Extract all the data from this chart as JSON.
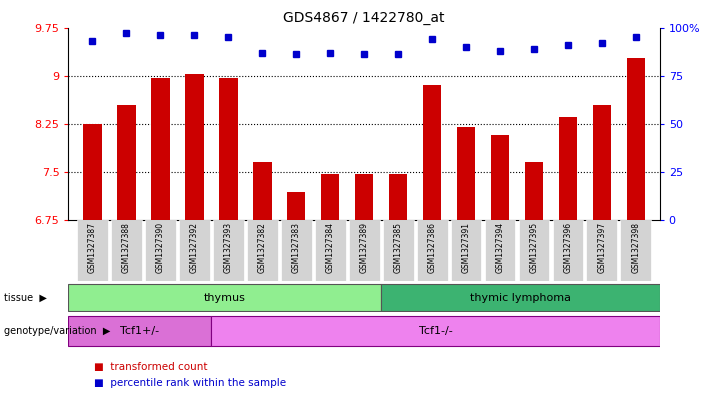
{
  "title": "GDS4867 / 1422780_at",
  "samples": [
    "GSM1327387",
    "GSM1327388",
    "GSM1327390",
    "GSM1327392",
    "GSM1327393",
    "GSM1327382",
    "GSM1327383",
    "GSM1327384",
    "GSM1327389",
    "GSM1327385",
    "GSM1327386",
    "GSM1327391",
    "GSM1327394",
    "GSM1327395",
    "GSM1327396",
    "GSM1327397",
    "GSM1327398"
  ],
  "transformed_count": [
    8.25,
    8.55,
    8.97,
    9.02,
    8.97,
    7.65,
    7.18,
    7.47,
    7.47,
    7.47,
    8.85,
    8.2,
    8.08,
    7.65,
    8.35,
    8.55,
    9.27
  ],
  "percentile_rank": [
    93,
    97,
    96,
    96,
    95,
    87,
    86,
    87,
    86,
    86,
    94,
    90,
    88,
    89,
    91,
    92,
    95
  ],
  "ylim_left": [
    6.75,
    9.75
  ],
  "ylim_right": [
    0,
    100
  ],
  "yticks_left": [
    6.75,
    7.5,
    8.25,
    9.0,
    9.75
  ],
  "ytick_labels_left": [
    "6.75",
    "7.5",
    "8.25",
    "9",
    "9.75"
  ],
  "yticks_right": [
    0,
    25,
    50,
    75,
    100
  ],
  "ytick_labels_right": [
    "0",
    "25",
    "50",
    "75",
    "100%"
  ],
  "hlines": [
    7.5,
    8.25,
    9.0
  ],
  "bar_color": "#cc0000",
  "dot_color": "#0000cc",
  "thymus_count": 9,
  "lymphoma_count": 8,
  "tcf1p_count": 4,
  "tcf1m_count": 13,
  "thymus_color": "#90ee90",
  "lymphoma_color": "#3cb371",
  "tcf1p_color": "#da70d6",
  "tcf1m_color": "#ee82ee",
  "background_color": "#ffffff",
  "tick_label_bg": "#d3d3d3"
}
